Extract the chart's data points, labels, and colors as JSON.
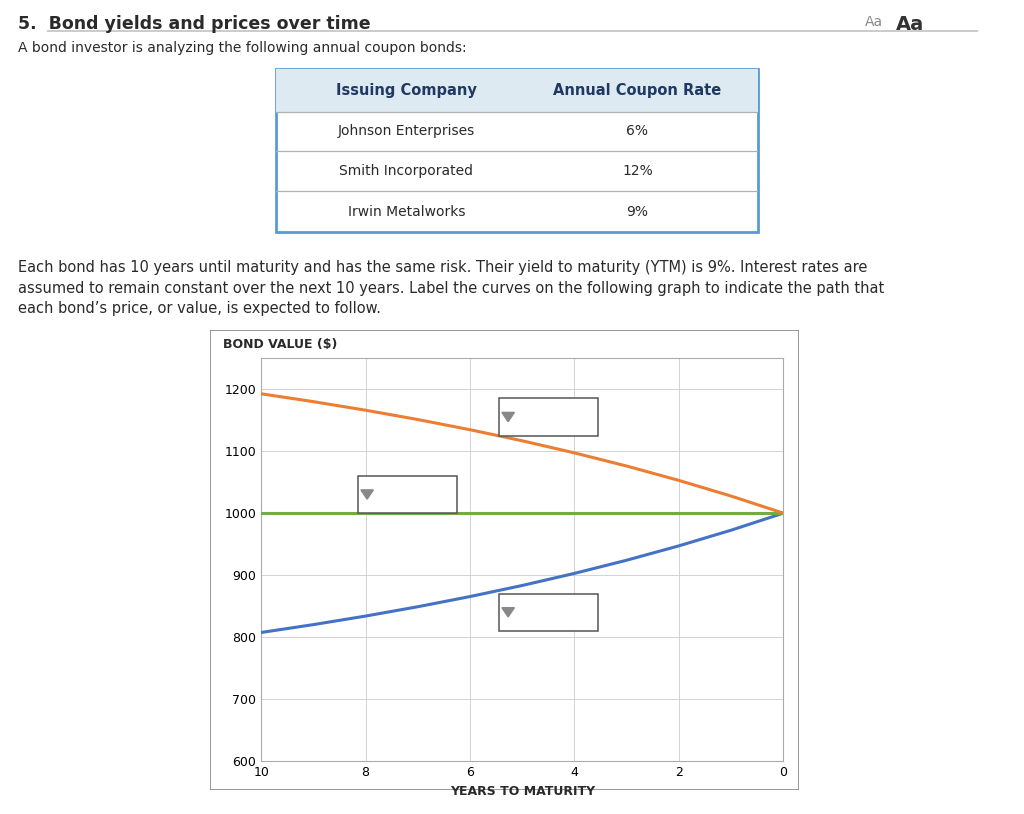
{
  "title": "5.  Bond yields and prices over time",
  "subtitle_text": "A bond investor is analyzing the following annual coupon bonds:",
  "table_headers": [
    "Issuing Company",
    "Annual Coupon Rate"
  ],
  "table_rows": [
    [
      "Johnson Enterprises",
      "6%"
    ],
    [
      "Smith Incorporated",
      "12%"
    ],
    [
      "Irwin Metalworks",
      "9%"
    ]
  ],
  "para_line1": "Each bond has 10 years until maturity and has the same risk. Their yield to maturity (YTM) is 9%. Interest rates are",
  "para_line2": "assumed to remain constant over the next 10 years. Label the curves on the following graph to indicate the path that",
  "para_line3": "each bond’s price, or value, is expected to follow.",
  "chart_ylabel": "BOND VALUE ($)",
  "chart_xlabel": "YEARS TO MATURITY",
  "ytm": 0.09,
  "face_value": 1000,
  "years_total": 10,
  "ylim": [
    600,
    1250
  ],
  "yticks": [
    600,
    700,
    800,
    900,
    1000,
    1100,
    1200
  ],
  "xticks": [
    0,
    2,
    4,
    6,
    8,
    10
  ],
  "line_colors": [
    "#4472C4",
    "#70AD47",
    "#ED7D31"
  ],
  "background_color": "#ffffff",
  "table_border_color": "#5B9BD5",
  "table_header_bg": "#DEEAF1",
  "table_header_text": "#1F3864",
  "grid_color": "#cccccc",
  "text_color": "#2a2a2a",
  "header_fontsize": 10.5,
  "body_fontsize": 10,
  "title_fontsize": 12.5,
  "para_fontsize": 10.5
}
